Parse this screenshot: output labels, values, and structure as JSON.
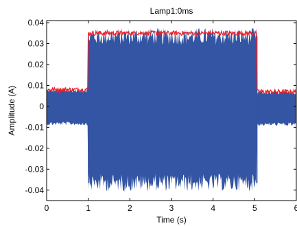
{
  "chart_data": {
    "type": "line",
    "title": "Lamp1:0ms",
    "xlabel": "Time (s)",
    "ylabel": "Amplitude (A)",
    "xlim": [
      0,
      6
    ],
    "ylim": [
      -0.045,
      0.041
    ],
    "xticks": [
      0,
      1,
      2,
      3,
      4,
      5,
      6
    ],
    "xtick_labels": [
      "0",
      "1",
      "2",
      "3",
      "4",
      "5",
      "6"
    ],
    "yticks": [
      -0.04,
      -0.03,
      -0.02,
      -0.01,
      0,
      0.01,
      0.02,
      0.03,
      0.04
    ],
    "ytick_labels": [
      "-0.04",
      "-0.03",
      "-0.02",
      "-0.01",
      "0",
      "0.01",
      "0.02",
      "0.03",
      "0.04"
    ],
    "grid": false,
    "colors": {
      "signal": "#3355a3",
      "envelope": "#e8202a"
    },
    "series": [
      {
        "role": "signal-band",
        "x": [
          0,
          1.0,
          1.0,
          5.05,
          5.05,
          6.0
        ],
        "upper": [
          0.0075,
          0.0075,
          0.0335,
          0.0335,
          0.0065,
          0.0065
        ],
        "lower": [
          -0.0082,
          -0.0082,
          -0.0365,
          -0.0365,
          -0.0085,
          -0.0085
        ]
      },
      {
        "role": "peak-envelope",
        "x": [
          0,
          1.0,
          1.0,
          5.05,
          5.05,
          6.0
        ],
        "y": [
          0.008,
          0.008,
          0.035,
          0.035,
          0.007,
          0.007
        ]
      }
    ]
  }
}
